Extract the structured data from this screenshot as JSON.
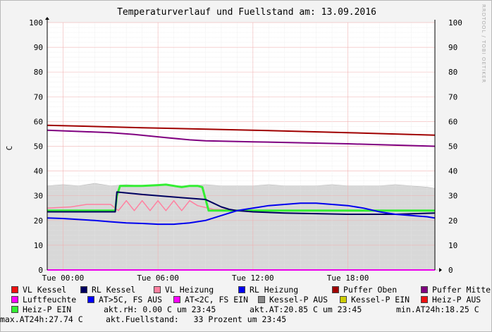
{
  "watermark": "RRDTOOL / TOBI OETIKER",
  "colors": {
    "background": "#f3f3f3",
    "plot_bg": "#ffffff",
    "grid_minor": "#e6e6e6",
    "grid_major": "#f0b0b0",
    "area": "#d8d8d8"
  },
  "chart_data": {
    "type": "line",
    "title": "Temperaturverlauf und Fuellstand am: 13.09.2016",
    "ylabel": "C",
    "ylim": [
      0,
      100
    ],
    "yticks": [
      0,
      10,
      20,
      30,
      40,
      50,
      60,
      70,
      80,
      90,
      100
    ],
    "xlim_hours": [
      -1,
      23.5
    ],
    "xtick_hours": [
      0,
      6,
      12,
      18
    ],
    "xtick_labels": [
      "Tue 00:00",
      "Tue 06:00",
      "Tue 12:00",
      "Tue 18:00"
    ],
    "x_unit": "hours after 13.09.2016 00:00",
    "series": [
      {
        "name": "Luftfeuchte",
        "color": "#d8d8d8",
        "kind": "area",
        "x": [
          -1,
          0,
          1,
          2,
          3,
          4,
          5,
          6,
          7,
          8,
          9,
          10,
          11,
          12,
          13,
          14,
          15,
          16,
          17,
          18,
          19,
          20,
          21,
          22,
          23,
          23.5
        ],
        "y": [
          34,
          34.5,
          34,
          35,
          34,
          34.5,
          34,
          34.5,
          34,
          34,
          34.5,
          34,
          34,
          34,
          34.5,
          34,
          34,
          34,
          34.5,
          34,
          34,
          34,
          34.5,
          34,
          33.5,
          33
        ]
      },
      {
        "name": "Puffer Oben",
        "color": "#a00000",
        "width": 2,
        "x": [
          -1,
          5,
          12,
          18,
          23.5
        ],
        "y": [
          58.5,
          57.5,
          56.5,
          55.5,
          54.5
        ]
      },
      {
        "name": "Puffer Mitte",
        "color": "#800080",
        "width": 2,
        "x": [
          -1,
          3,
          4.5,
          6.5,
          8,
          9,
          12,
          18,
          23.5
        ],
        "y": [
          56.5,
          55.5,
          54.8,
          53.5,
          52.6,
          52.2,
          51.8,
          51,
          50
        ]
      },
      {
        "name": "VL Heizung",
        "color": "#ff80a0",
        "width": 1.5,
        "x": [
          -1,
          0.5,
          1.5,
          3,
          3.5,
          4,
          4.5,
          5,
          5.5,
          6,
          6.5,
          7,
          7.5,
          8,
          8.5,
          9.5,
          12,
          23.5
        ],
        "y": [
          25,
          25.5,
          26.5,
          26.5,
          24,
          28,
          24,
          28,
          24,
          28,
          24,
          28,
          24,
          28,
          26,
          24.5,
          24,
          24
        ]
      },
      {
        "name": "Heiz-P EIN",
        "color": "#33ee33",
        "width": 3,
        "x": [
          -1,
          3.3,
          3.4,
          3.6,
          5,
          6,
          6.5,
          7.5,
          8,
          8.5,
          8.8,
          9.2,
          12,
          18,
          23.5
        ],
        "y": [
          24,
          24,
          30,
          34,
          34,
          34.3,
          34.5,
          33.5,
          34,
          34,
          33.5,
          24,
          24,
          24,
          24
        ]
      },
      {
        "name": "RL Kessel",
        "color": "#000060",
        "width": 2,
        "x": [
          -1,
          3.3,
          3.4,
          5,
          7,
          9,
          9.5,
          10,
          10.5,
          11,
          12,
          14,
          18,
          21,
          23.5
        ],
        "y": [
          23.5,
          23.5,
          31.5,
          30.5,
          29.5,
          28.5,
          27,
          25.5,
          24.5,
          24,
          23.5,
          23,
          22.5,
          22.5,
          23
        ]
      },
      {
        "name": "RL Heizung",
        "color": "#0000ee",
        "width": 2,
        "x": [
          -1,
          0,
          2,
          3,
          4,
          5,
          6,
          7,
          8,
          9,
          10,
          11,
          12,
          13,
          14,
          15,
          16,
          17,
          18,
          19,
          20,
          21,
          22,
          23,
          23.5
        ],
        "y": [
          21,
          20.8,
          20,
          19.5,
          19,
          18.8,
          18.5,
          18.5,
          19,
          20,
          22,
          24,
          25,
          26,
          26.5,
          27,
          27,
          26.5,
          26,
          25,
          23.5,
          22.5,
          22,
          21.5,
          21
        ]
      }
    ]
  },
  "legend": [
    {
      "label": "VL Kessel",
      "color": "#ee1111"
    },
    {
      "label": "RL Kessel",
      "color": "#000060"
    },
    {
      "label": "VL Heizung",
      "color": "#ff80a0"
    },
    {
      "label": "RL Heizung",
      "color": "#0000ee"
    },
    {
      "label": "Puffer Oben",
      "color": "#a00000"
    },
    {
      "label": "Puffer Mitte",
      "color": "#800080"
    },
    {
      "label": "Luftfeuchte",
      "color": "#ff00ff"
    },
    {
      "label": "AT>5C, FS AUS",
      "color": "#0000ff"
    },
    {
      "label": "AT<2C, FS EIN",
      "color": "#ff00ff"
    },
    {
      "label": "Kessel-P AUS",
      "color": "#888888"
    },
    {
      "label": "Kessel-P EIN",
      "color": "#cccc00"
    },
    {
      "label": "Heiz-P AUS",
      "color": "#ee1111"
    },
    {
      "label": "Heiz-P EIN",
      "color": "#33ee33"
    }
  ],
  "status": {
    "rh": "akt.rH: 0.00 C um 23:45",
    "at": "akt.AT:20.85 C um 23:45",
    "min": "min.AT24h:18.25 C",
    "max": "max.AT24h:27.74 C",
    "fill": "akt.Fuellstand:   33 Prozent um 23:45"
  }
}
